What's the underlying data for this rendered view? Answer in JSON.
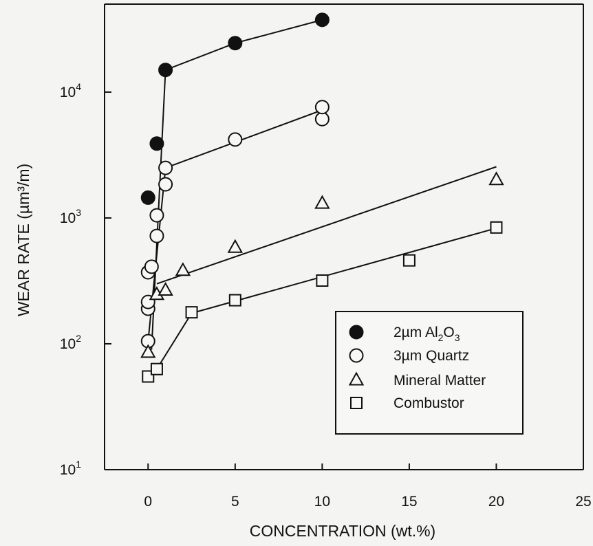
{
  "chart_data": {
    "type": "scatter",
    "title": "",
    "xlabel": "CONCENTRATION (wt.%)",
    "ylabel": "WEAR RATE (µm³/m)",
    "yscale": "log",
    "xlim": [
      -2.5,
      25
    ],
    "ylim": [
      10,
      50000
    ],
    "x_ticks": [
      0,
      5,
      10,
      15,
      20,
      25
    ],
    "y_ticks": [
      {
        "value": 10,
        "base": "10",
        "exp": "1"
      },
      {
        "value": 100,
        "base": "10",
        "exp": "2"
      },
      {
        "value": 1000,
        "base": "10",
        "exp": "3"
      },
      {
        "value": 10000,
        "base": "10",
        "exp": "4"
      }
    ],
    "legend_position": "bottom-right",
    "series": [
      {
        "name": "2µm Al₂O₃",
        "label_main": "2µm Al",
        "label_sub1": "2",
        "label_mid": "O",
        "label_sub2": "3",
        "marker": "filled-circle",
        "points": [
          [
            0,
            1450
          ],
          [
            0.5,
            3900
          ],
          [
            1,
            15000
          ],
          [
            5,
            24500
          ],
          [
            10,
            37500
          ]
        ],
        "fit_line": [
          [
            0.2,
            90
          ],
          [
            1,
            15000
          ],
          [
            5,
            24500
          ],
          [
            10,
            37500
          ]
        ]
      },
      {
        "name": "3µm Quartz",
        "marker": "open-circle",
        "points": [
          [
            0,
            105
          ],
          [
            0,
            190
          ],
          [
            0,
            215
          ],
          [
            0,
            370
          ],
          [
            0.2,
            410
          ],
          [
            0.5,
            720
          ],
          [
            0.5,
            1050
          ],
          [
            1,
            1850
          ],
          [
            1,
            2500
          ],
          [
            5,
            4200
          ],
          [
            10,
            6100
          ],
          [
            10,
            7600
          ]
        ],
        "fit_line": [
          [
            0,
            105
          ],
          [
            1,
            2500
          ],
          [
            10,
            7200
          ]
        ]
      },
      {
        "name": "Mineral Matter",
        "marker": "open-triangle",
        "points": [
          [
            0,
            85
          ],
          [
            0.5,
            245
          ],
          [
            1,
            265
          ],
          [
            2,
            380
          ],
          [
            5,
            580
          ],
          [
            10,
            1300
          ],
          [
            20,
            2000
          ]
        ],
        "fit_line": [
          [
            0.5,
            300
          ],
          [
            20,
            2550
          ]
        ]
      },
      {
        "name": "Combustor",
        "marker": "open-square",
        "points": [
          [
            0,
            55
          ],
          [
            0.5,
            63
          ],
          [
            2.5,
            178
          ],
          [
            5,
            222
          ],
          [
            10,
            318
          ],
          [
            15,
            460
          ],
          [
            20,
            840
          ]
        ],
        "fit_line": [
          [
            0.5,
            63
          ],
          [
            2.5,
            175
          ],
          [
            20,
            830
          ]
        ]
      }
    ]
  }
}
